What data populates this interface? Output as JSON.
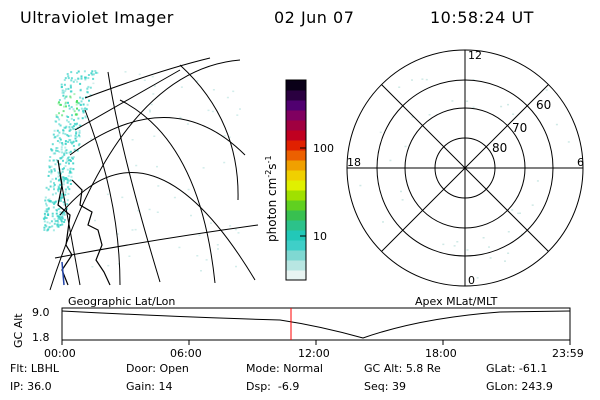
{
  "header": {
    "title": "Ultraviolet Imager",
    "date": "02 Jun 07",
    "time": "10:58:24 UT"
  },
  "geo_map": {
    "label": "Geographic Lat/Lon",
    "emission_color": "#3ad2c8",
    "emission_peak_color": "#3fe060"
  },
  "colorbar": {
    "unit_label": "photon cm",
    "unit_sup1": "-2",
    "unit_mid": "s",
    "unit_sup2": "-1",
    "tick_100": "100",
    "tick_10": "10",
    "colors": [
      "#e8f4f2",
      "#b8e6e2",
      "#7fd8d2",
      "#3fcfc8",
      "#22c8b8",
      "#2cc28a",
      "#38c050",
      "#60d020",
      "#a0e000",
      "#e0f000",
      "#f0d000",
      "#f0a000",
      "#ec6000",
      "#e02000",
      "#c00020",
      "#a00040",
      "#800060",
      "#500070",
      "#2a0040",
      "#0a0018"
    ]
  },
  "polar": {
    "label": "Apex MLat/MLT",
    "hour_12": "12",
    "hour_18": "18",
    "hour_6": "6",
    "hour_0": "0",
    "lat_60": "60",
    "lat_70": "70",
    "lat_80": "80"
  },
  "timeline": {
    "axis_label": "GC Alt",
    "y_top": "9.0",
    "y_bottom": "1.8",
    "ticks": [
      "00:00",
      "06:00",
      "12:00",
      "18:00",
      "23:59"
    ],
    "current_marker_color": "#ff0000"
  },
  "status": {
    "flt_label": "Flt:",
    "flt_value": "LBHL",
    "door_label": "Door:",
    "door_value": "Open",
    "mode_label": "Mode:",
    "mode_value": "Normal",
    "gcalt_label": "GC Alt:",
    "gcalt_value": "5.8 Re",
    "glat_label": "GLat:",
    "glat_value": "-61.1",
    "ip_label": "IP:",
    "ip_value": "36.0",
    "gain_label": "Gain:",
    "gain_value": "14",
    "dsp_label": "Dsp:",
    "dsp_value": "-6.9",
    "seq_label": "Seq:",
    "seq_value": "39",
    "glon_label": "GLon:",
    "glon_value": "243.9"
  }
}
